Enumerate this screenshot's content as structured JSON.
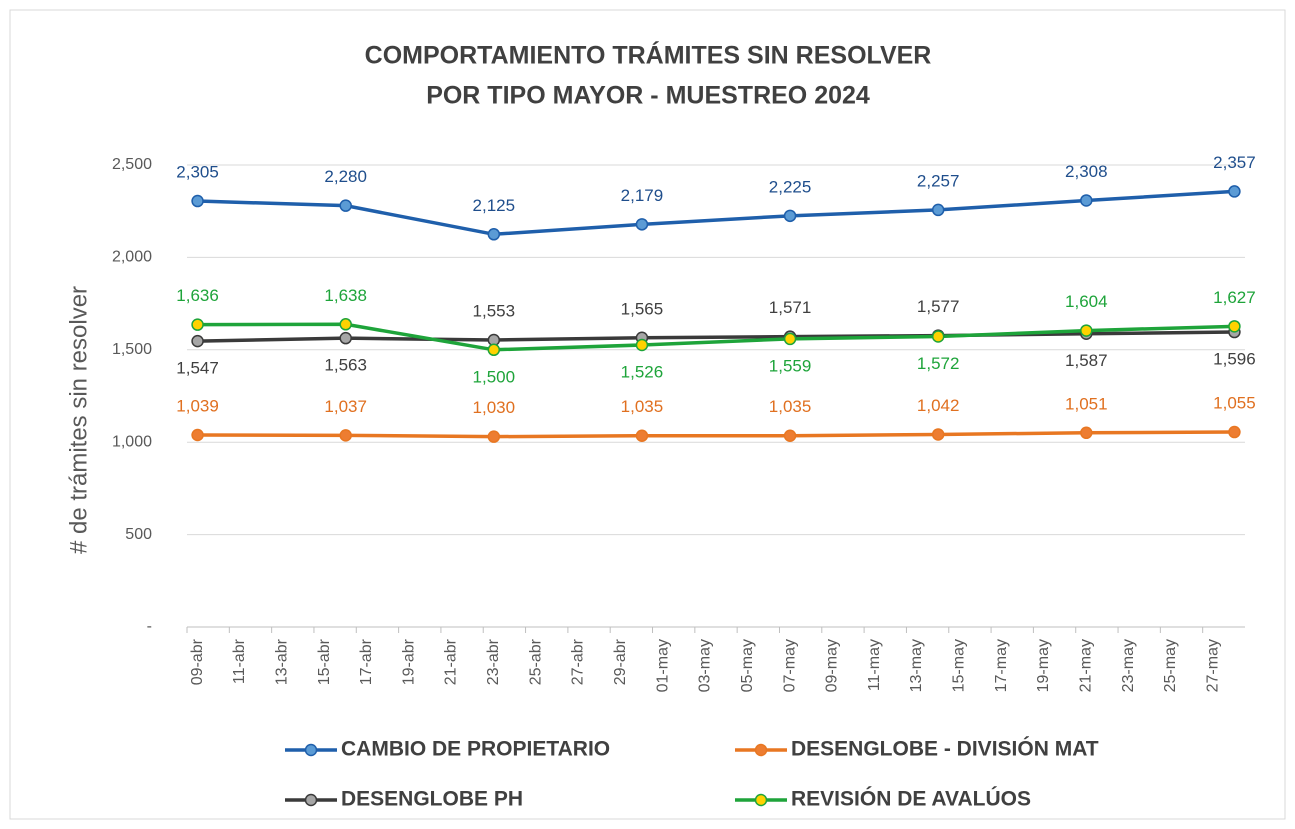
{
  "chart_data": {
    "type": "line",
    "title": [
      "COMPORTAMIENTO TRÁMITES SIN RESOLVER",
      "POR TIPO MAYOR - MUESTREO 2024"
    ],
    "y_label": "# de trámites sin resolver",
    "x": [
      "09-abr",
      "16-abr",
      "23-abr",
      "30-abr",
      "07-may",
      "14-may",
      "21-may",
      "28-may"
    ],
    "xlim": [
      "09-abr",
      "28-may"
    ],
    "xticks": [
      "09-abr",
      "11-abr",
      "13-abr",
      "15-abr",
      "17-abr",
      "19-abr",
      "21-abr",
      "23-abr",
      "25-abr",
      "27-abr",
      "29-abr",
      "01-may",
      "03-may",
      "05-may",
      "07-may",
      "09-may",
      "11-may",
      "13-may",
      "15-may",
      "17-may",
      "19-may",
      "21-may",
      "23-may",
      "25-may",
      "27-may"
    ],
    "ylim": [
      0,
      2500
    ],
    "yticks": [
      {
        "value": 0,
        "label": "-"
      },
      500,
      {
        "value": 1000,
        "label": "1,000"
      },
      {
        "value": 1500,
        "label": "1,500"
      },
      {
        "value": 2000,
        "label": "2,000"
      },
      {
        "value": 2500,
        "label": "2,500"
      }
    ],
    "grid": true,
    "legend": "bottom",
    "series": [
      {
        "name": "CAMBIO DE PROPIETARIO",
        "color": "#1f5fab",
        "marker_color": "#5b9bd5",
        "label_color": "#1f4e8c",
        "values": [
          2305,
          2280,
          2125,
          2179,
          2225,
          2257,
          2308,
          2357
        ],
        "value_labels": [
          "2,305",
          "2,280",
          "2,125",
          "2,179",
          "2,225",
          "2,257",
          "2,308",
          "2,357"
        ]
      },
      {
        "name": "DESENGLOBE - DIVISIÓN MAT",
        "color": "#e87722",
        "marker_color": "#ed7d31",
        "label_color": "#e07020",
        "values": [
          1039,
          1037,
          1030,
          1035,
          1035,
          1042,
          1051,
          1055
        ],
        "value_labels": [
          "1,039",
          "1,037",
          "1,030",
          "1,035",
          "1,035",
          "1,042",
          "1,051",
          "1,055"
        ]
      },
      {
        "name": "DESENGLOBE PH",
        "color": "#3a3a3a",
        "marker_color": "#a6a6a6",
        "label_color": "#404040",
        "values": [
          1547,
          1563,
          1553,
          1565,
          1571,
          1577,
          1587,
          1596
        ],
        "value_labels": [
          "1,547",
          "1,563",
          "1,553",
          "1,565",
          "1,571",
          "1,577",
          "1,587",
          "1,596"
        ]
      },
      {
        "name": "REVISIÓN DE AVALÚOS",
        "color": "#1ea43a",
        "marker_color": "#ffd200",
        "label_color": "#1ea43a",
        "values": [
          1636,
          1638,
          1500,
          1526,
          1559,
          1572,
          1604,
          1627
        ],
        "value_labels": [
          "1,636",
          "1,638",
          "1,500",
          "1,526",
          "1,559",
          "1,572",
          "1,604",
          "1,627"
        ]
      }
    ]
  }
}
